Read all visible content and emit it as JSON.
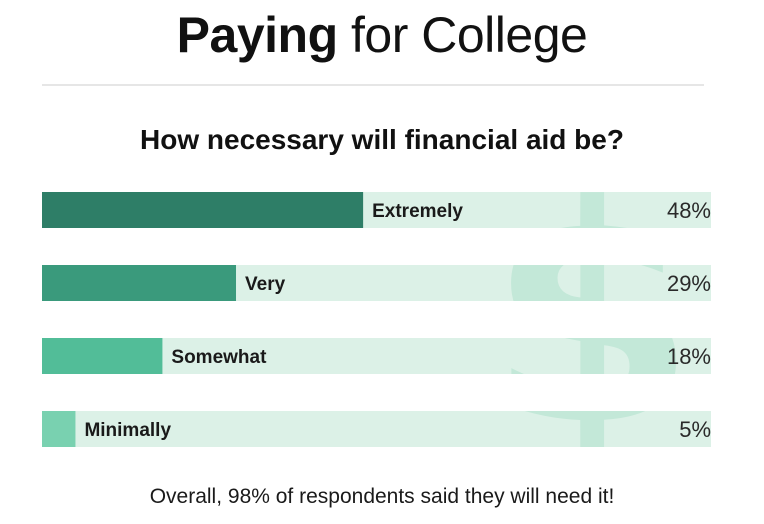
{
  "title_bold": "Paying",
  "title_rest": " for College",
  "question": "How necessary will financial aid be?",
  "footer": "Overall, 98% of respondents said they will need it!",
  "colors": {
    "track": "#dcf1e7",
    "watermark": "#c3e8d8",
    "bars": [
      "#2e7e67",
      "#3a9a7c",
      "#52bd98",
      "#79d1b0"
    ]
  },
  "chart_data": {
    "type": "bar",
    "orientation": "horizontal",
    "categories": [
      "Extremely",
      "Very",
      "Somewhat",
      "Minimally"
    ],
    "values": [
      48,
      29,
      18,
      5
    ],
    "value_labels": [
      "48%",
      "29%",
      "18%",
      "5%"
    ],
    "unit": "%",
    "xlim": [
      0,
      100
    ],
    "grid": false,
    "legend": "none"
  }
}
